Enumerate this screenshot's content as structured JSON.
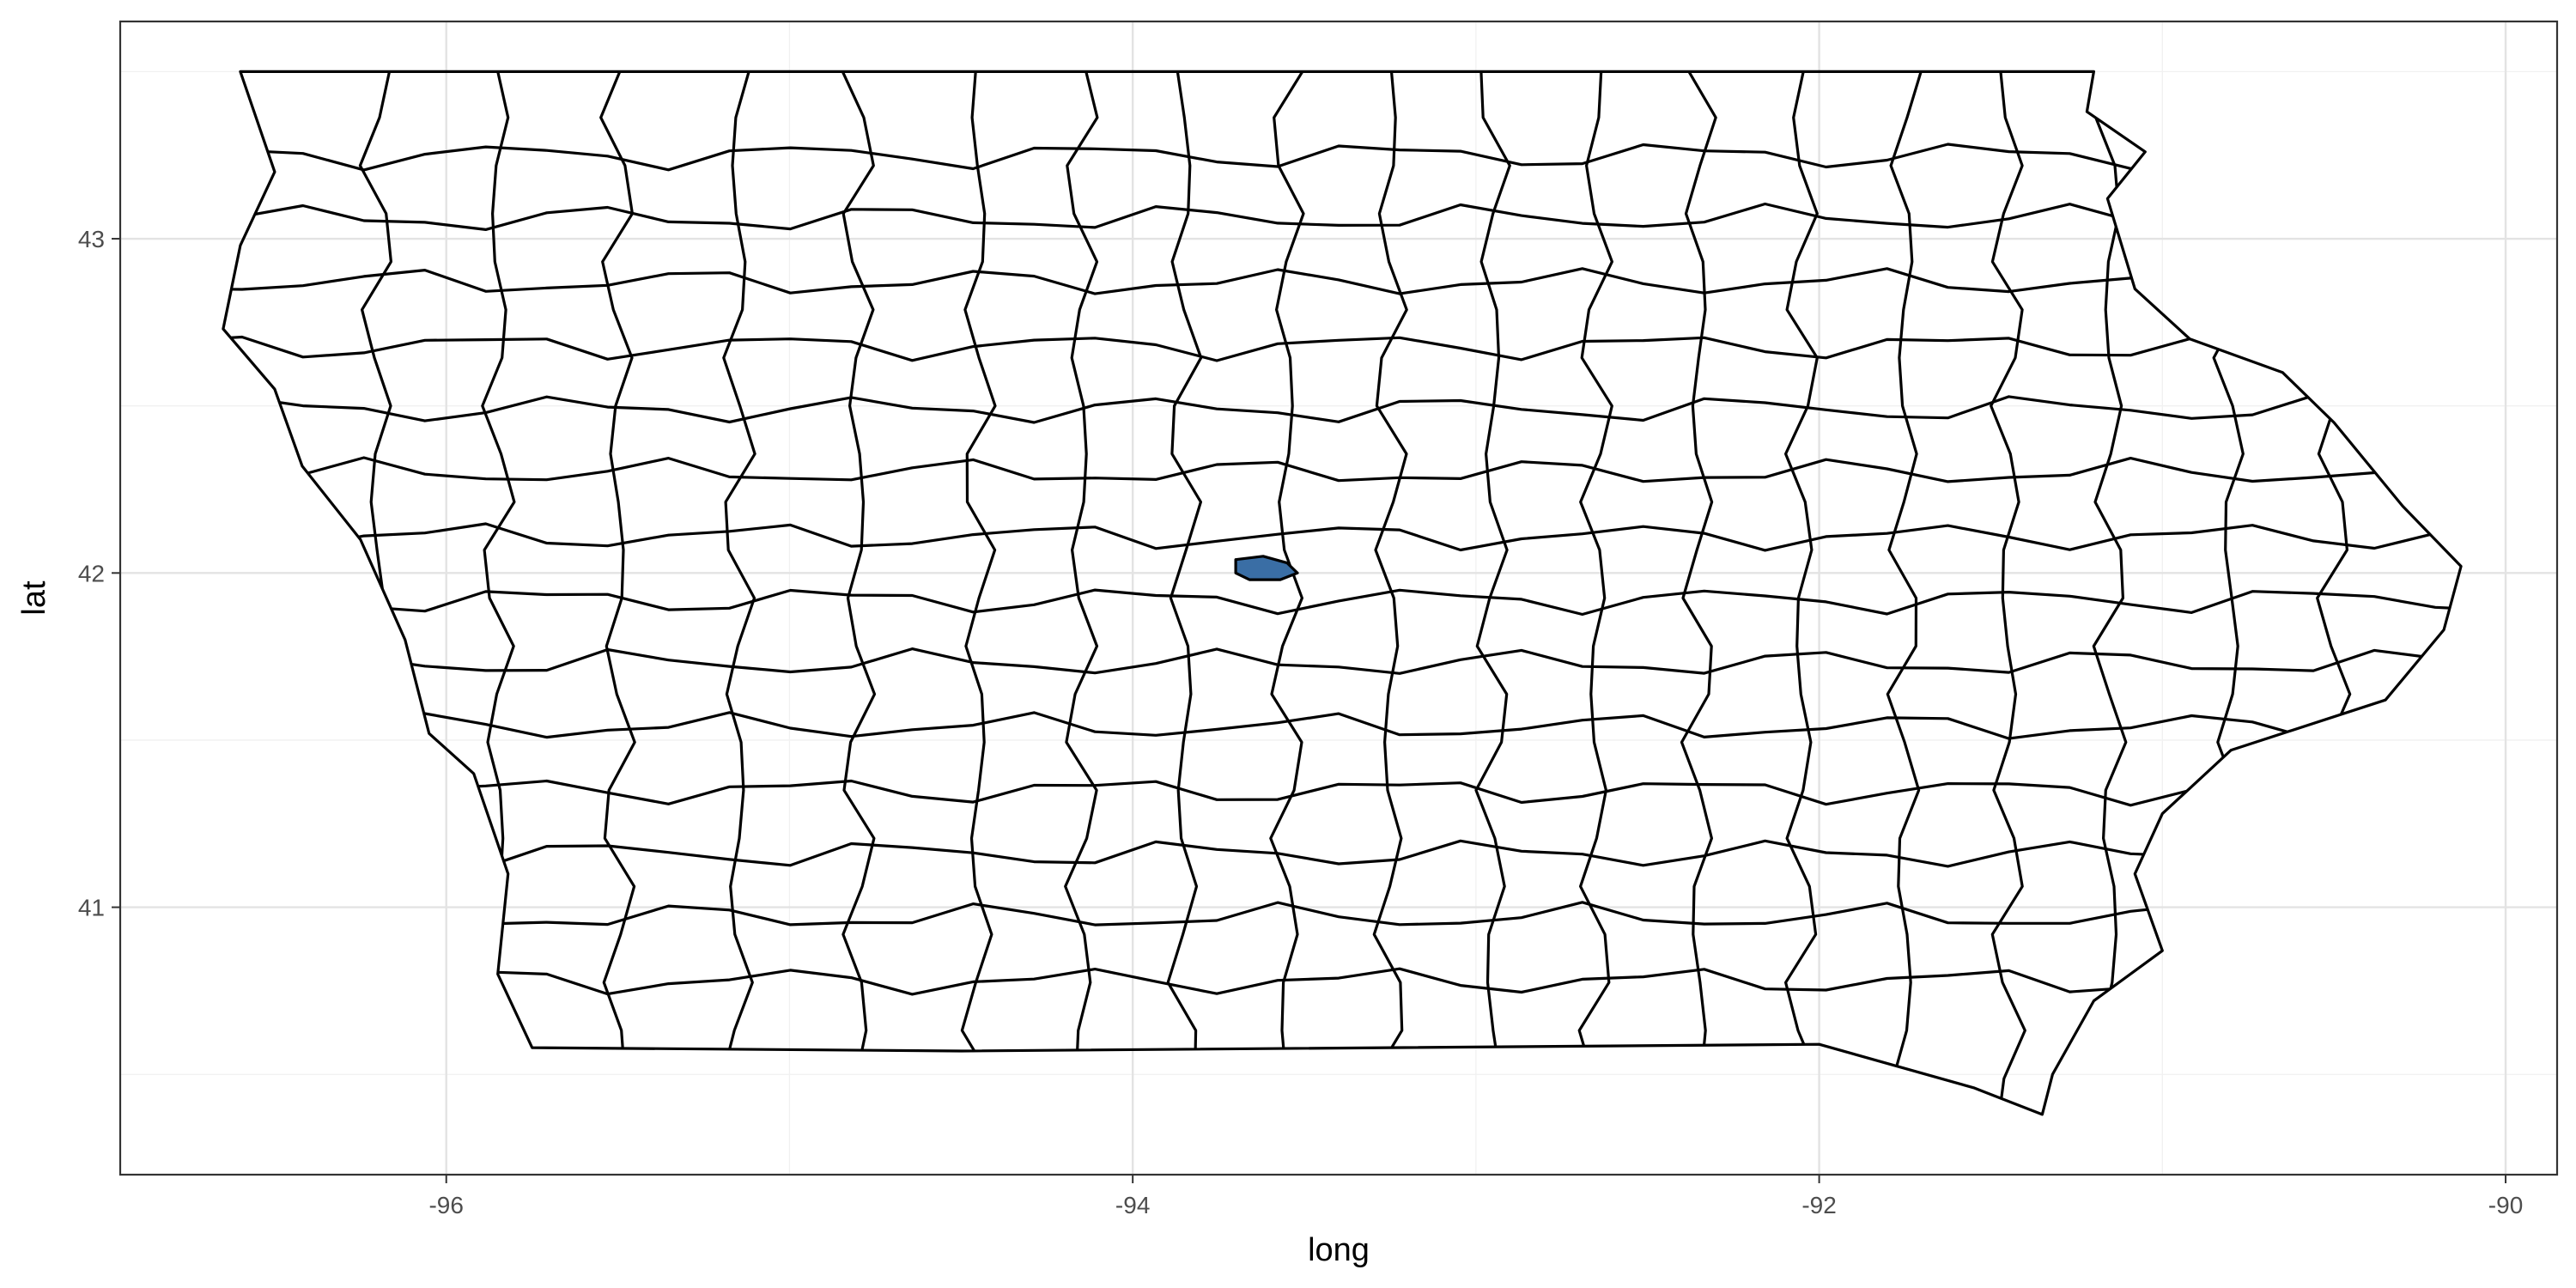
{
  "chart_data": {
    "type": "map",
    "xlabel": "long",
    "ylabel": "lat",
    "xlim": [
      -96.95,
      -89.85
    ],
    "ylim": [
      40.2,
      43.65
    ],
    "x_ticks": [
      {
        "value": -96,
        "label": "-96"
      },
      {
        "value": -94,
        "label": "-94"
      },
      {
        "value": -92,
        "label": "-92"
      },
      {
        "value": -90,
        "label": "-90"
      }
    ],
    "y_ticks": [
      {
        "value": 41,
        "label": "41"
      },
      {
        "value": 42,
        "label": "42"
      },
      {
        "value": 43,
        "label": "43"
      }
    ],
    "x_minor": [
      -97,
      -95,
      -93,
      -91
    ],
    "y_minor": [
      40.5,
      41.5,
      42.5,
      43.5
    ],
    "grid": true,
    "theme": "bw",
    "state_outline": [
      [
        -96.6,
        43.5
      ],
      [
        -91.2,
        43.5
      ],
      [
        -91.22,
        43.38
      ],
      [
        -91.05,
        43.26
      ],
      [
        -91.16,
        43.12
      ],
      [
        -91.08,
        42.85
      ],
      [
        -90.92,
        42.7
      ],
      [
        -90.65,
        42.6
      ],
      [
        -90.5,
        42.45
      ],
      [
        -90.3,
        42.2
      ],
      [
        -90.13,
        42.02
      ],
      [
        -90.18,
        41.83
      ],
      [
        -90.35,
        41.62
      ],
      [
        -90.8,
        41.47
      ],
      [
        -91.0,
        41.28
      ],
      [
        -91.08,
        41.1
      ],
      [
        -91.0,
        40.87
      ],
      [
        -91.2,
        40.72
      ],
      [
        -91.32,
        40.5
      ],
      [
        -91.35,
        40.38
      ],
      [
        -91.55,
        40.46
      ],
      [
        -92.0,
        40.59
      ],
      [
        -94.5,
        40.57
      ],
      [
        -95.75,
        40.58
      ],
      [
        -95.85,
        40.8
      ],
      [
        -95.82,
        41.1
      ],
      [
        -95.92,
        41.4
      ],
      [
        -96.05,
        41.52
      ],
      [
        -96.12,
        41.8
      ],
      [
        -96.25,
        42.1
      ],
      [
        -96.42,
        42.32
      ],
      [
        -96.5,
        42.55
      ],
      [
        -96.65,
        42.73
      ],
      [
        -96.6,
        42.98
      ],
      [
        -96.5,
        43.2
      ],
      [
        -96.6,
        43.5
      ]
    ],
    "interior_lines_lon": [
      -96.2,
      -95.85,
      -95.5,
      -95.15,
      -94.8,
      -94.45,
      -94.15,
      -93.85,
      -93.55,
      -93.25,
      -92.95,
      -92.65,
      -92.35,
      -92.05,
      -91.75,
      -91.45,
      -91.15,
      -90.8,
      -90.5
    ],
    "interior_lines_lat": [
      40.78,
      40.97,
      41.16,
      41.35,
      41.54,
      41.73,
      41.92,
      42.11,
      42.3,
      42.49,
      42.68,
      42.87,
      43.06,
      43.25
    ],
    "highlight": {
      "fill": "#3a6ea5",
      "outline": [
        [
          -93.7,
          42.04
        ],
        [
          -93.62,
          42.05
        ],
        [
          -93.55,
          42.03
        ],
        [
          -93.52,
          42.0
        ],
        [
          -93.57,
          41.98
        ],
        [
          -93.66,
          41.98
        ],
        [
          -93.7,
          42.0
        ],
        [
          -93.7,
          42.04
        ]
      ]
    }
  }
}
